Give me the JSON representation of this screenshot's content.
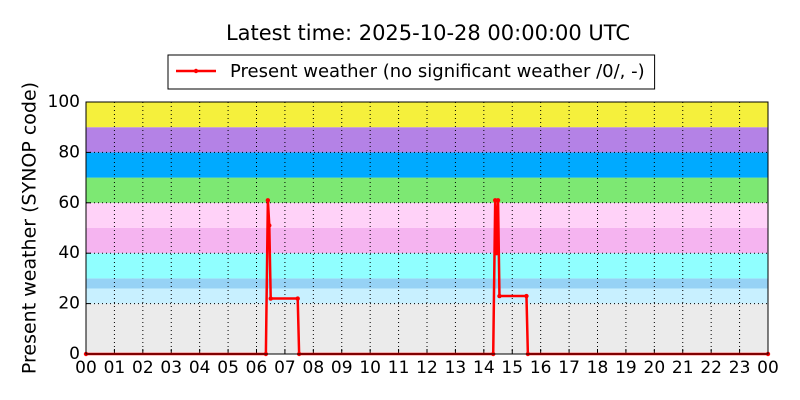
{
  "chart_data": {
    "type": "line",
    "title": "Latest time: 2025-10-28 00:00:00 UTC",
    "ylabel": "Present weather (SYNOP code)",
    "xlim": [
      0,
      24
    ],
    "ylim": [
      0,
      100
    ],
    "xticks": [
      {
        "value": 0,
        "label": "00"
      },
      {
        "value": 1,
        "label": "01"
      },
      {
        "value": 2,
        "label": "02"
      },
      {
        "value": 3,
        "label": "03"
      },
      {
        "value": 4,
        "label": "04"
      },
      {
        "value": 5,
        "label": "05"
      },
      {
        "value": 6,
        "label": "06"
      },
      {
        "value": 7,
        "label": "07"
      },
      {
        "value": 8,
        "label": "08"
      },
      {
        "value": 9,
        "label": "09"
      },
      {
        "value": 10,
        "label": "10"
      },
      {
        "value": 11,
        "label": "11"
      },
      {
        "value": 12,
        "label": "12"
      },
      {
        "value": 13,
        "label": "13"
      },
      {
        "value": 14,
        "label": "14"
      },
      {
        "value": 15,
        "label": "15"
      },
      {
        "value": 16,
        "label": "16"
      },
      {
        "value": 17,
        "label": "17"
      },
      {
        "value": 18,
        "label": "18"
      },
      {
        "value": 19,
        "label": "19"
      },
      {
        "value": 20,
        "label": "20"
      },
      {
        "value": 21,
        "label": "21"
      },
      {
        "value": 22,
        "label": "22"
      },
      {
        "value": 23,
        "label": "23"
      },
      {
        "value": 24,
        "label": "00"
      }
    ],
    "yticks": [
      0,
      20,
      40,
      60,
      80,
      100
    ],
    "grid": true,
    "legend": "top",
    "bands": [
      {
        "from": 0,
        "to": 20,
        "color": "#ebebeb"
      },
      {
        "from": 20,
        "to": 26,
        "color": "#c8f0ff"
      },
      {
        "from": 26,
        "to": 30,
        "color": "#96d2f5"
      },
      {
        "from": 30,
        "to": 40,
        "color": "#90ffff"
      },
      {
        "from": 40,
        "to": 50,
        "color": "#f5b4f0"
      },
      {
        "from": 50,
        "to": 60,
        "color": "#ffd2f8"
      },
      {
        "from": 60,
        "to": 70,
        "color": "#7de873"
      },
      {
        "from": 70,
        "to": 80,
        "color": "#00aaff"
      },
      {
        "from": 80,
        "to": 90,
        "color": "#b482e6"
      },
      {
        "from": 90,
        "to": 100,
        "color": "#f5f03c"
      }
    ],
    "x": [
      0,
      6.33,
      6.4,
      6.45,
      6.5,
      7.45,
      7.5,
      14.33,
      14.4,
      14.45,
      14.5,
      14.55,
      15.5,
      15.55,
      24
    ],
    "series": [
      {
        "name": "Present weather (no significant weather /0/, -)",
        "color": "#ff0000",
        "values": [
          0,
          0,
          61,
          51,
          22,
          22,
          0,
          0,
          61,
          40,
          61,
          23,
          23,
          0,
          0
        ]
      }
    ]
  }
}
